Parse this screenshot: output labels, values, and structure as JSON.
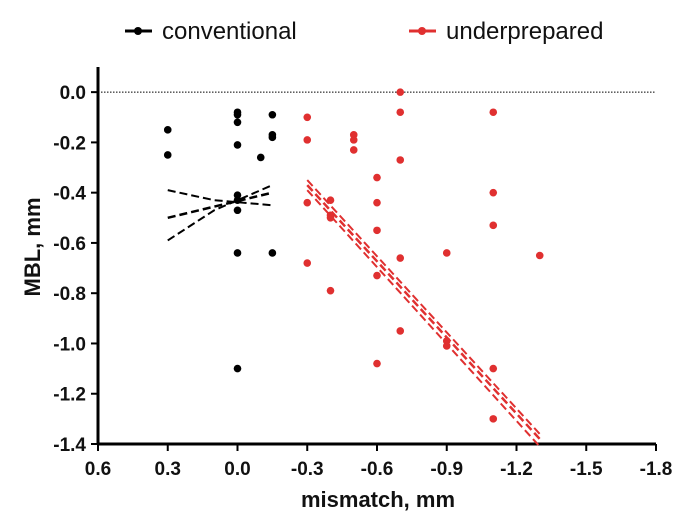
{
  "chart_data": {
    "type": "scatter",
    "xlabel": "mismatch, mm",
    "ylabel": "MBL, mm",
    "xlim": [
      0.6,
      -1.8
    ],
    "ylim": [
      -1.4,
      0.1
    ],
    "xticks": [
      "0.6",
      "0.3",
      "0.0",
      "-0.3",
      "-0.6",
      "-0.9",
      "-1.2",
      "-1.5",
      "-1.8"
    ],
    "yticks": [
      "0.0",
      "-0.2",
      "-0.4",
      "-0.6",
      "-0.8",
      "-1.0",
      "-1.2",
      "-1.4"
    ],
    "xtick_values": [
      0.6,
      0.3,
      0.0,
      -0.3,
      -0.6,
      -0.9,
      -1.2,
      -1.5,
      -1.8
    ],
    "ytick_values": [
      0.0,
      -0.2,
      -0.4,
      -0.6,
      -0.8,
      -1.0,
      -1.2,
      -1.4
    ],
    "reference_line_y": 0.0,
    "legend_position": "top",
    "series": [
      {
        "name": "conventional",
        "color": "#000000",
        "points": [
          [
            0.3,
            -0.15
          ],
          [
            0.3,
            -0.25
          ],
          [
            0.0,
            -0.08
          ],
          [
            0.0,
            -0.09
          ],
          [
            0.0,
            -0.12
          ],
          [
            0.0,
            -0.21
          ],
          [
            0.0,
            -0.41
          ],
          [
            0.0,
            -0.43
          ],
          [
            0.0,
            -0.47
          ],
          [
            0.0,
            -0.64
          ],
          [
            0.0,
            -1.1
          ],
          [
            -0.1,
            -0.26
          ],
          [
            -0.15,
            -0.09
          ],
          [
            -0.15,
            -0.17
          ],
          [
            -0.15,
            -0.18
          ],
          [
            -0.15,
            -0.64
          ]
        ],
        "fit": {
          "x": [
            0.3,
            -0.15
          ],
          "y": [
            -0.5,
            -0.4
          ]
        },
        "ci_upper": {
          "x": [
            0.3,
            0.1,
            -0.15
          ],
          "y": [
            -0.39,
            -0.43,
            -0.45
          ]
        },
        "ci_lower": {
          "x": [
            0.3,
            0.1,
            -0.15
          ],
          "y": [
            -0.59,
            -0.47,
            -0.37
          ]
        }
      },
      {
        "name": "underprepared",
        "color": "#e03030",
        "points": [
          [
            -0.3,
            -0.1
          ],
          [
            -0.3,
            -0.19
          ],
          [
            -0.3,
            -0.44
          ],
          [
            -0.3,
            -0.68
          ],
          [
            -0.4,
            -0.43
          ],
          [
            -0.4,
            -0.49
          ],
          [
            -0.4,
            -0.5
          ],
          [
            -0.4,
            -0.79
          ],
          [
            -0.5,
            -0.17
          ],
          [
            -0.5,
            -0.19
          ],
          [
            -0.5,
            -0.23
          ],
          [
            -0.6,
            -0.34
          ],
          [
            -0.6,
            -0.44
          ],
          [
            -0.6,
            -0.55
          ],
          [
            -0.6,
            -0.73
          ],
          [
            -0.6,
            -1.08
          ],
          [
            -0.7,
            0.0
          ],
          [
            -0.7,
            -0.08
          ],
          [
            -0.7,
            -0.27
          ],
          [
            -0.7,
            -0.66
          ],
          [
            -0.7,
            -0.95
          ],
          [
            -0.9,
            -0.64
          ],
          [
            -0.9,
            -0.99
          ],
          [
            -0.9,
            -1.01
          ],
          [
            -1.1,
            -0.08
          ],
          [
            -1.1,
            -0.4
          ],
          [
            -1.1,
            -0.53
          ],
          [
            -1.1,
            -1.1
          ],
          [
            -1.1,
            -1.3
          ],
          [
            -1.3,
            -0.65
          ]
        ],
        "fit": {
          "x": [
            -0.3,
            -1.3
          ],
          "y": [
            -0.37,
            -1.38
          ]
        },
        "ci_upper": {
          "x": [
            -0.3,
            -1.3
          ],
          "y": [
            -0.35,
            -1.36
          ]
        },
        "ci_lower": {
          "x": [
            -0.3,
            -1.3
          ],
          "y": [
            -0.39,
            -1.41
          ]
        }
      }
    ]
  }
}
